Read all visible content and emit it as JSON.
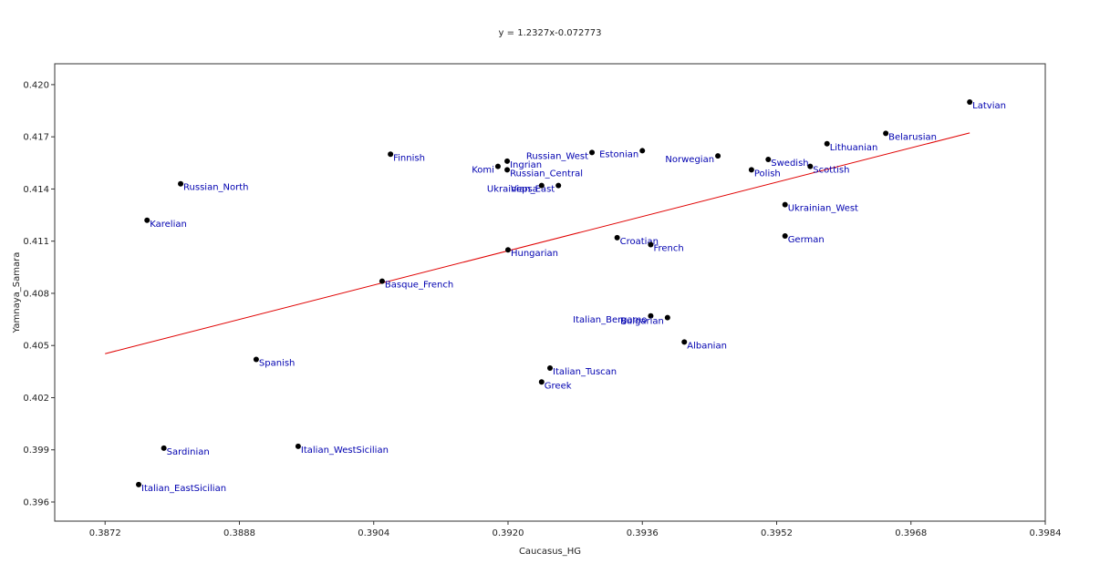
{
  "chart_data": {
    "type": "scatter",
    "title": "y = 1.2327x-0.072773",
    "xlabel": "Caucasus_HG",
    "ylabel": "Yamnaya_Samara",
    "xlim": [
      0.3866,
      0.3984
    ],
    "ylim": [
      0.3949,
      0.4212
    ],
    "xticks": [
      0.3872,
      0.3888,
      0.3904,
      0.392,
      0.3936,
      0.3952,
      0.3968,
      0.3984
    ],
    "xtick_labels": [
      "0.3872",
      "0.3888",
      "0.3904",
      "0.3920",
      "0.3936",
      "0.3952",
      "0.3968",
      "0.3984"
    ],
    "yticks": [
      0.396,
      0.399,
      0.402,
      0.405,
      0.408,
      0.411,
      0.414,
      0.417,
      0.42
    ],
    "ytick_labels": [
      "0.396",
      "0.399",
      "0.402",
      "0.405",
      "0.408",
      "0.411",
      "0.414",
      "0.417",
      "0.420"
    ],
    "grid": false,
    "trendline": {
      "slope": 1.2327,
      "intercept": -0.072773,
      "x_range": [
        0.3872,
        0.3975
      ],
      "color": "#e00000"
    },
    "point_color": "#000000",
    "label_color": "#0000b0",
    "points": [
      {
        "label": "Latvian",
        "x": 0.3975,
        "y": 0.419,
        "label_side": "right"
      },
      {
        "label": "Belarusian",
        "x": 0.3965,
        "y": 0.4172,
        "label_side": "right"
      },
      {
        "label": "Lithuanian",
        "x": 0.3958,
        "y": 0.4166,
        "label_side": "right"
      },
      {
        "label": "Swedish",
        "x": 0.3951,
        "y": 0.4157,
        "label_side": "right"
      },
      {
        "label": "Scottish",
        "x": 0.3956,
        "y": 0.4153,
        "label_side": "right"
      },
      {
        "label": "Polish",
        "x": 0.3949,
        "y": 0.4151,
        "label_side": "right"
      },
      {
        "label": "Norwegian",
        "x": 0.3945,
        "y": 0.4159,
        "label_side": "left"
      },
      {
        "label": "Estonian",
        "x": 0.3936,
        "y": 0.4162,
        "label_side": "left"
      },
      {
        "label": "Russian_West",
        "x": 0.393,
        "y": 0.4161,
        "label_side": "left"
      },
      {
        "label": "Ingrian",
        "x": 0.39199,
        "y": 0.4156,
        "label_side": "right"
      },
      {
        "label": "Komi",
        "x": 0.39188,
        "y": 0.4153,
        "label_side": "left"
      },
      {
        "label": "Russian_Central",
        "x": 0.39199,
        "y": 0.4151,
        "label_side": "right"
      },
      {
        "label": "Ukrainian_East",
        "x": 0.3926,
        "y": 0.4142,
        "label_side": "left"
      },
      {
        "label": "Vepsa",
        "x": 0.3924,
        "y": 0.4142,
        "label_side": "left"
      },
      {
        "label": "Finnish",
        "x": 0.3906,
        "y": 0.416,
        "label_side": "right"
      },
      {
        "label": "Russian_North",
        "x": 0.3881,
        "y": 0.4143,
        "label_side": "right"
      },
      {
        "label": "Karelian",
        "x": 0.3877,
        "y": 0.4122,
        "label_side": "right"
      },
      {
        "label": "Ukrainian_West",
        "x": 0.3953,
        "y": 0.4131,
        "label_side": "right"
      },
      {
        "label": "German",
        "x": 0.3953,
        "y": 0.4113,
        "label_side": "right"
      },
      {
        "label": "Croatian",
        "x": 0.3933,
        "y": 0.4112,
        "label_side": "right"
      },
      {
        "label": "French",
        "x": 0.3937,
        "y": 0.4108,
        "label_side": "right"
      },
      {
        "label": "Hungarian",
        "x": 0.392,
        "y": 0.4105,
        "label_side": "right"
      },
      {
        "label": "Basque_French",
        "x": 0.3905,
        "y": 0.4087,
        "label_side": "right"
      },
      {
        "label": "Italian_Bergamo",
        "x": 0.3937,
        "y": 0.4067,
        "label_side": "left"
      },
      {
        "label": "Bulgarian",
        "x": 0.3939,
        "y": 0.4066,
        "label_side": "left"
      },
      {
        "label": "Albanian",
        "x": 0.3941,
        "y": 0.4052,
        "label_side": "right"
      },
      {
        "label": "Spanish",
        "x": 0.389,
        "y": 0.4042,
        "label_side": "right"
      },
      {
        "label": "Italian_Tuscan",
        "x": 0.3925,
        "y": 0.4037,
        "label_side": "right"
      },
      {
        "label": "Greek",
        "x": 0.3924,
        "y": 0.4029,
        "label_side": "right"
      },
      {
        "label": "Sardinian",
        "x": 0.3879,
        "y": 0.3991,
        "label_side": "right"
      },
      {
        "label": "Italian_WestSicilian",
        "x": 0.3895,
        "y": 0.3992,
        "label_side": "right"
      },
      {
        "label": "Italian_EastSicilian",
        "x": 0.3876,
        "y": 0.397,
        "label_side": "right"
      }
    ]
  }
}
